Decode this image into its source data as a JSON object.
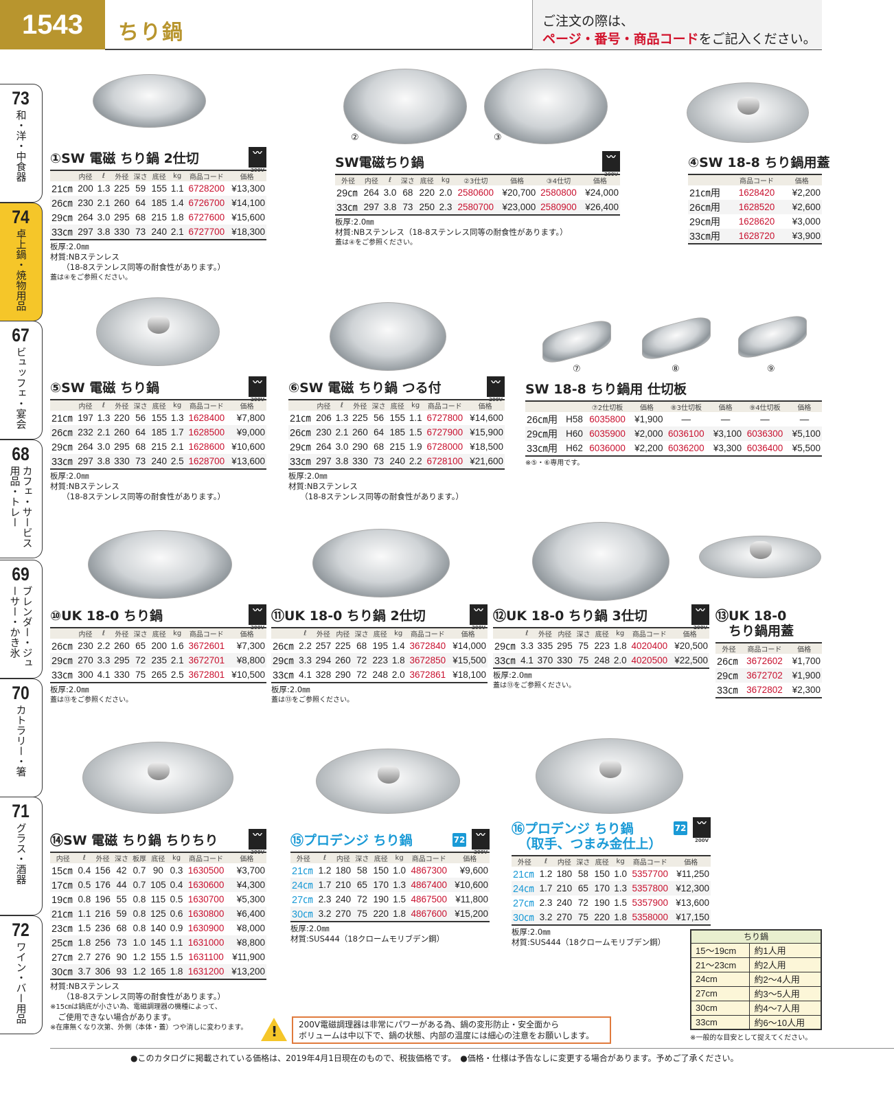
{
  "header": {
    "page_number": "1543",
    "title": "ちり鍋",
    "order_line1": "ご注文の際は、",
    "order_red": "ページ・番号・商品コード",
    "order_rest": "をご記入ください。"
  },
  "side_tabs": [
    {
      "number": "73",
      "label": "和・洋・中食器",
      "active": false
    },
    {
      "number": "74",
      "label": "卓上鍋・焼物用品",
      "active": true
    },
    {
      "number": "67",
      "label": "ビュッフェ・宴会",
      "active": false
    },
    {
      "number": "68",
      "label": "カフェ・サービス用品・トレー",
      "active": false
    },
    {
      "number": "69",
      "label": "ブレンダー・ジューサー・かき氷",
      "active": false
    },
    {
      "number": "70",
      "label": "カトラリー・箸",
      "active": false
    },
    {
      "number": "71",
      "label": "グラス・酒器",
      "active": false
    },
    {
      "number": "72",
      "label": "ワイン・バー用品",
      "active": false
    }
  ],
  "colors": {
    "gold": "#b8952e",
    "code_red": "#c8102e",
    "blue": "#1a9ad6",
    "active_tab": "#f5c629",
    "warning_border": "#e07a3c"
  },
  "induction_badge": {
    "icon": "induction-heater-icon",
    "label": "200V"
  },
  "products": [
    {
      "id": "p1",
      "title": "①SW 電磁 ちり鍋 2仕切",
      "ih": true,
      "headers": [
        "",
        "内径",
        "ℓ",
        "外径",
        "深さ",
        "底径",
        "kg",
        "商品コード",
        "価格"
      ],
      "rows": [
        [
          "21㎝",
          "200",
          "1.3",
          "225",
          "59",
          "155",
          "1.1",
          "6728200",
          "¥13,300"
        ],
        [
          "26㎝",
          "230",
          "2.1",
          "260",
          "64",
          "185",
          "1.4",
          "6726700",
          "¥14,100"
        ],
        [
          "29㎝",
          "264",
          "3.0",
          "295",
          "68",
          "215",
          "1.8",
          "6727600",
          "¥15,600"
        ],
        [
          "33㎝",
          "297",
          "3.8",
          "330",
          "73",
          "240",
          "2.1",
          "6727700",
          "¥18,300"
        ]
      ],
      "notes": [
        "板厚:2.0㎜",
        "材質:NBステンレス",
        "　　（18-8ステンレス同等の耐食性があります。）",
        "蓋は④をご参照ください。"
      ]
    },
    {
      "id": "p23",
      "title": "SW電磁ちり鍋",
      "ih": true,
      "image_labels": [
        "②",
        "③"
      ],
      "headers": [
        "外径",
        "内径",
        "ℓ",
        "深さ",
        "底径",
        "kg",
        "②3仕切",
        "価格",
        "③4仕切",
        "価格"
      ],
      "rows": [
        [
          "29㎝",
          "264",
          "3.0",
          "68",
          "220",
          "2.0",
          "2580600",
          "¥20,700",
          "2580800",
          "¥24,000"
        ],
        [
          "33㎝",
          "297",
          "3.8",
          "73",
          "250",
          "2.3",
          "2580700",
          "¥23,000",
          "2580900",
          "¥26,400"
        ]
      ],
      "notes": [
        "板厚:2.0㎜",
        "材質:NBステンレス（18-8ステンレス同等の耐食性があります。）",
        "蓋は④をご参照ください。"
      ]
    },
    {
      "id": "p4",
      "title": "④SW 18-8 ちり鍋用蓋",
      "ih": false,
      "headers": [
        "",
        "商品コード",
        "価格"
      ],
      "rows": [
        [
          "21㎝用",
          "1628420",
          "¥2,200"
        ],
        [
          "26㎝用",
          "1628520",
          "¥2,600"
        ],
        [
          "29㎝用",
          "1628620",
          "¥3,000"
        ],
        [
          "33㎝用",
          "1628720",
          "¥3,900"
        ]
      ],
      "notes": []
    },
    {
      "id": "p5",
      "title": "⑤SW 電磁 ちり鍋",
      "ih": true,
      "headers": [
        "",
        "内径",
        "ℓ",
        "外径",
        "深さ",
        "底径",
        "kg",
        "商品コード",
        "価格"
      ],
      "rows": [
        [
          "21㎝",
          "197",
          "1.3",
          "220",
          "56",
          "155",
          "1.3",
          "1628400",
          "¥7,800"
        ],
        [
          "26㎝",
          "232",
          "2.1",
          "260",
          "64",
          "185",
          "1.7",
          "1628500",
          "¥9,000"
        ],
        [
          "29㎝",
          "264",
          "3.0",
          "295",
          "68",
          "215",
          "2.1",
          "1628600",
          "¥10,600"
        ],
        [
          "33㎝",
          "297",
          "3.8",
          "330",
          "73",
          "240",
          "2.5",
          "1628700",
          "¥13,600"
        ]
      ],
      "notes": [
        "板厚:2.0㎜",
        "材質:NBステンレス",
        "　　（18-8ステンレス同等の耐食性があります。）"
      ]
    },
    {
      "id": "p6",
      "title": "⑥SW 電磁 ちり鍋 つる付",
      "ih": true,
      "headers": [
        "",
        "内径",
        "ℓ",
        "外径",
        "深さ",
        "底径",
        "kg",
        "商品コード",
        "価格"
      ],
      "rows": [
        [
          "21㎝",
          "206",
          "1.3",
          "225",
          "56",
          "155",
          "1.1",
          "6727800",
          "¥14,600"
        ],
        [
          "26㎝",
          "230",
          "2.1",
          "260",
          "64",
          "185",
          "1.5",
          "6727900",
          "¥15,900"
        ],
        [
          "29㎝",
          "264",
          "3.0",
          "290",
          "68",
          "215",
          "1.9",
          "6728000",
          "¥18,500"
        ],
        [
          "33㎝",
          "297",
          "3.8",
          "330",
          "73",
          "240",
          "2.2",
          "6728100",
          "¥21,600"
        ]
      ],
      "notes": [
        "板厚:2.0㎜",
        "材質:NBステンレス",
        "　　（18-8ステンレス同等の耐食性があります。）"
      ]
    },
    {
      "id": "p789",
      "title": "SW 18-8 ちり鍋用 仕切板",
      "ih": false,
      "image_labels": [
        "⑦",
        "⑧",
        "⑨"
      ],
      "headers": [
        "",
        "",
        "⑦2仕切板",
        "価格",
        "⑧3仕切板",
        "価格",
        "⑨4仕切板",
        "価格"
      ],
      "rows": [
        [
          "26㎝用",
          "H58",
          "6035800",
          "¥1,900",
          "—",
          "—",
          "—",
          "—"
        ],
        [
          "29㎝用",
          "H60",
          "6035900",
          "¥2,000",
          "6036100",
          "¥3,100",
          "6036300",
          "¥5,100"
        ],
        [
          "33㎝用",
          "H62",
          "6036000",
          "¥2,200",
          "6036200",
          "¥3,300",
          "6036400",
          "¥5,500"
        ]
      ],
      "notes": [
        "※⑤・⑥専用です。"
      ]
    },
    {
      "id": "p10",
      "title": "⑩UK 18-0 ちり鍋",
      "ih": true,
      "headers": [
        "",
        "内径",
        "ℓ",
        "外径",
        "深さ",
        "底径",
        "kg",
        "商品コード",
        "価格"
      ],
      "rows": [
        [
          "26㎝",
          "230",
          "2.2",
          "260",
          "65",
          "200",
          "1.6",
          "3672601",
          "¥7,300"
        ],
        [
          "29㎝",
          "270",
          "3.3",
          "295",
          "72",
          "235",
          "2.1",
          "3672701",
          "¥8,800"
        ],
        [
          "33㎝",
          "300",
          "4.1",
          "330",
          "75",
          "265",
          "2.5",
          "3672801",
          "¥10,500"
        ]
      ],
      "notes": [
        "板厚:2.0㎜",
        "蓋は⑬をご参照ください。"
      ]
    },
    {
      "id": "p11",
      "title": "⑪UK 18-0 ちり鍋 2仕切",
      "ih": true,
      "headers": [
        "",
        "ℓ",
        "外径",
        "内径",
        "深さ",
        "底径",
        "kg",
        "商品コード",
        "価格"
      ],
      "rows": [
        [
          "26㎝",
          "2.2",
          "257",
          "225",
          "68",
          "195",
          "1.4",
          "3672840",
          "¥14,000"
        ],
        [
          "29㎝",
          "3.3",
          "294",
          "260",
          "72",
          "223",
          "1.8",
          "3672850",
          "¥15,500"
        ],
        [
          "33㎝",
          "4.1",
          "328",
          "290",
          "72",
          "248",
          "2.0",
          "3672861",
          "¥18,100"
        ]
      ],
      "notes": [
        "板厚:2.0㎜",
        "蓋は⑬をご参照ください。"
      ]
    },
    {
      "id": "p12",
      "title": "⑫UK 18-0 ちり鍋 3仕切",
      "ih": true,
      "headers": [
        "",
        "ℓ",
        "外径",
        "内径",
        "深さ",
        "底径",
        "kg",
        "商品コード",
        "価格"
      ],
      "rows": [
        [
          "29㎝",
          "3.3",
          "335",
          "295",
          "75",
          "223",
          "1.8",
          "4020400",
          "¥20,500"
        ],
        [
          "33㎝",
          "4.1",
          "370",
          "330",
          "75",
          "248",
          "2.0",
          "4020500",
          "¥22,500"
        ]
      ],
      "notes": [
        "板厚:2.0㎜",
        "蓋は⑬をご参照ください。"
      ]
    },
    {
      "id": "p13",
      "title": "⑬UK 18-0\n　ちり鍋用蓋",
      "ih": false,
      "headers": [
        "外径",
        "商品コード",
        "価格"
      ],
      "rows": [
        [
          "26㎝",
          "3672602",
          "¥1,700"
        ],
        [
          "29㎝",
          "3672702",
          "¥1,900"
        ],
        [
          "33㎝",
          "3672802",
          "¥2,300"
        ]
      ],
      "notes": []
    },
    {
      "id": "p14",
      "title": "⑭SW 電磁 ちり鍋 ちりちり",
      "ih": true,
      "headers": [
        "内径",
        "ℓ",
        "外径",
        "深さ",
        "板厚",
        "底径",
        "kg",
        "商品コード",
        "価格"
      ],
      "rows": [
        [
          "15㎝",
          "0.4",
          "156",
          "42",
          "0.7",
          "90",
          "0.3",
          "1630500",
          "¥3,700"
        ],
        [
          "17㎝",
          "0.5",
          "176",
          "44",
          "0.7",
          "105",
          "0.4",
          "1630600",
          "¥4,300"
        ],
        [
          "19㎝",
          "0.8",
          "196",
          "55",
          "0.8",
          "115",
          "0.5",
          "1630700",
          "¥5,300"
        ],
        [
          "21㎝",
          "1.1",
          "216",
          "59",
          "0.8",
          "125",
          "0.6",
          "1630800",
          "¥6,400"
        ],
        [
          "23㎝",
          "1.5",
          "236",
          "68",
          "0.8",
          "140",
          "0.9",
          "1630900",
          "¥8,000"
        ],
        [
          "25㎝",
          "1.8",
          "256",
          "73",
          "1.0",
          "145",
          "1.1",
          "1631000",
          "¥8,800"
        ],
        [
          "27㎝",
          "2.7",
          "276",
          "90",
          "1.2",
          "155",
          "1.5",
          "1631100",
          "¥11,900"
        ],
        [
          "30㎝",
          "3.7",
          "306",
          "93",
          "1.2",
          "165",
          "1.8",
          "1631200",
          "¥13,200"
        ]
      ],
      "notes": [
        "材質:NBステンレス",
        "　　（18-8ステンレス同等の耐食性があります。）",
        "※15㎝は鍋底が小さい為、電磁調理器の機種によって、",
        "　ご使用できない場合があります。",
        "※在庫無くなり次第、外側（本体・蓋）つや消しに変わります。"
      ]
    },
    {
      "id": "p15",
      "title": "⑮プロデンジ ちり鍋",
      "ih": true,
      "badge": "72",
      "blue": true,
      "headers": [
        "外径",
        "ℓ",
        "内径",
        "深さ",
        "底径",
        "kg",
        "商品コード",
        "価格"
      ],
      "rows": [
        [
          "21㎝",
          "1.2",
          "180",
          "58",
          "150",
          "1.0",
          "4867300",
          "¥9,600"
        ],
        [
          "24㎝",
          "1.7",
          "210",
          "65",
          "170",
          "1.3",
          "4867400",
          "¥10,600"
        ],
        [
          "27㎝",
          "2.3",
          "240",
          "72",
          "190",
          "1.5",
          "4867500",
          "¥11,800"
        ],
        [
          "30㎝",
          "3.2",
          "270",
          "75",
          "220",
          "1.8",
          "4867600",
          "¥15,200"
        ]
      ],
      "notes": [
        "板厚:2.0㎜",
        "材質:SUS444（18クロームモリブデン鋼）"
      ]
    },
    {
      "id": "p16",
      "title": "⑯プロデンジ ちり鍋\n　（取手、つまみ金仕上）",
      "ih": true,
      "badge": "72",
      "blue": true,
      "headers": [
        "外径",
        "ℓ",
        "内径",
        "深さ",
        "底径",
        "kg",
        "商品コード",
        "価格"
      ],
      "rows": [
        [
          "21㎝",
          "1.2",
          "180",
          "58",
          "150",
          "1.0",
          "5357700",
          "¥11,250"
        ],
        [
          "24㎝",
          "1.7",
          "210",
          "65",
          "170",
          "1.3",
          "5357800",
          "¥12,300"
        ],
        [
          "27㎝",
          "2.3",
          "240",
          "72",
          "190",
          "1.5",
          "5357900",
          "¥13,600"
        ],
        [
          "30㎝",
          "3.2",
          "270",
          "75",
          "220",
          "1.8",
          "5358000",
          "¥17,150"
        ]
      ],
      "notes": [
        "板厚:2.0㎜",
        "材質:SUS444（18クロームモリブデン鋼）"
      ]
    }
  ],
  "serving_table": {
    "title": "ちり鍋",
    "rows": [
      [
        "15〜19cm",
        "約1人用"
      ],
      [
        "21〜23cm",
        "約2人用"
      ],
      [
        "24cm",
        "約2〜4人用"
      ],
      [
        "27cm",
        "約3〜5人用"
      ],
      [
        "30cm",
        "約4〜7人用"
      ],
      [
        "33cm",
        "約6〜10人用"
      ]
    ],
    "note": "※一般的な目安として捉えてください。"
  },
  "warning": {
    "icon": "warning-icon",
    "line1": "200V電磁調理器は非常にパワーがある為、鍋の変形防止・安全面から",
    "line2": "ボリュームは中以下で、鍋の状態、内部の温度には細心の注意をお願いします。"
  },
  "footer": "●このカタログに掲載されている価格は、2019年4月1日現在のもので、税抜価格です。　●価格・仕様は予告なしに変更する場合があります。予めご了承ください。"
}
